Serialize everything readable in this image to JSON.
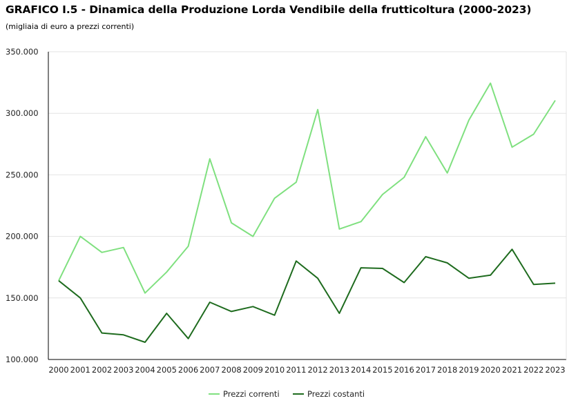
{
  "chart_data": {
    "type": "line",
    "title": "GRAFICO I.5 - Dinamica della Produzione Lorda Vendibile della frutticoltura (2000-2023)",
    "subtitle": "(migliaia di euro a prezzi correnti)",
    "x": [
      "2000",
      "2001",
      "2002",
      "2003",
      "2004",
      "2005",
      "2006",
      "2007",
      "2008",
      "2009",
      "2010",
      "2011",
      "2012",
      "2013",
      "2014",
      "2015",
      "2016",
      "2017",
      "2018",
      "2019",
      "2020",
      "2021",
      "2022",
      "2023"
    ],
    "series": [
      {
        "name": "Prezzi correnti",
        "color": "#7fe07f",
        "values": [
          164000,
          200000,
          187000,
          191000,
          154000,
          171000,
          192000,
          263000,
          211000,
          200000,
          231000,
          244000,
          303000,
          206000,
          212000,
          234000,
          248000,
          281000,
          251500,
          294500,
          324500,
          272500,
          283000,
          310500
        ]
      },
      {
        "name": "Prezzi costanti",
        "color": "#1e6b1e",
        "values": [
          164000,
          150000,
          121500,
          120000,
          114000,
          137500,
          117000,
          146500,
          139000,
          143000,
          136000,
          180000,
          166000,
          137500,
          174500,
          174000,
          162500,
          183500,
          178500,
          166000,
          168500,
          189500,
          161000,
          162000
        ]
      }
    ],
    "ylim": [
      100000,
      350000
    ],
    "yticks": [
      "100.000",
      "150.000",
      "200.000",
      "250.000",
      "300.000",
      "350.000"
    ],
    "grid": true,
    "legend_position": "bottom"
  }
}
